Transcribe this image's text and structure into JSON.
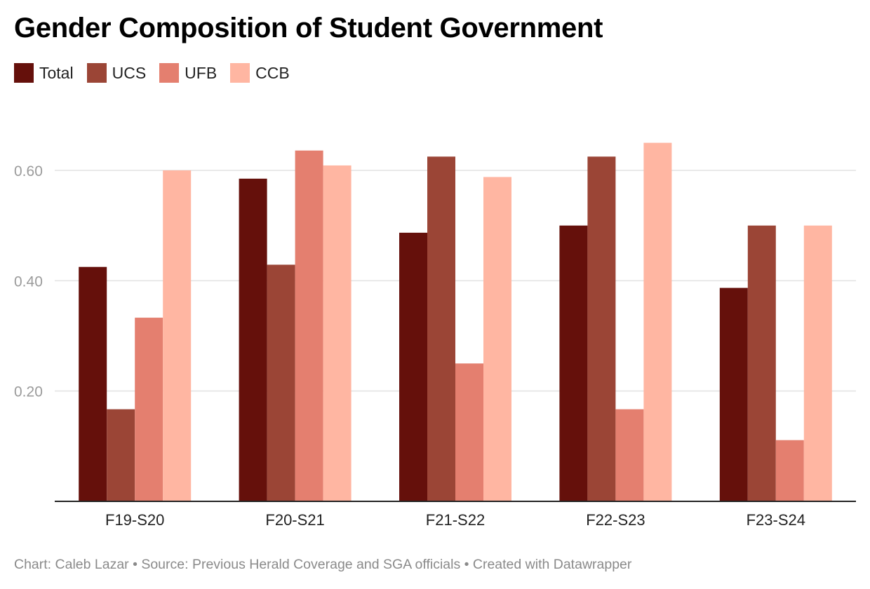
{
  "chart_data": {
    "type": "bar",
    "title": "Gender Composition of Student Government",
    "categories": [
      "F19-S20",
      "F20-S21",
      "F21-S22",
      "F22-S23",
      "F23-S24"
    ],
    "series": [
      {
        "name": "Total",
        "color": "#65100b",
        "values": [
          0.425,
          0.585,
          0.487,
          0.5,
          0.387
        ]
      },
      {
        "name": "UCS",
        "color": "#9b4536",
        "values": [
          0.167,
          0.429,
          0.625,
          0.625,
          0.5
        ]
      },
      {
        "name": "UFB",
        "color": "#e47f6f",
        "values": [
          0.333,
          0.636,
          0.25,
          0.167,
          0.111
        ]
      },
      {
        "name": "CCB",
        "color": "#ffb6a2",
        "values": [
          0.6,
          0.609,
          0.588,
          0.65,
          0.5
        ]
      }
    ],
    "yticks": [
      0.2,
      0.4,
      0.6
    ],
    "ytick_labels": [
      "0.20",
      "0.40",
      "0.60"
    ],
    "ylim": [
      0,
      0.6
    ],
    "xlabel": "",
    "ylabel": "",
    "grid": true,
    "legend_position": "top-left"
  },
  "footer": {
    "text": "Chart: Caleb Lazar • Source: Previous Herald Coverage and SGA officials • Created with Datawrapper"
  }
}
